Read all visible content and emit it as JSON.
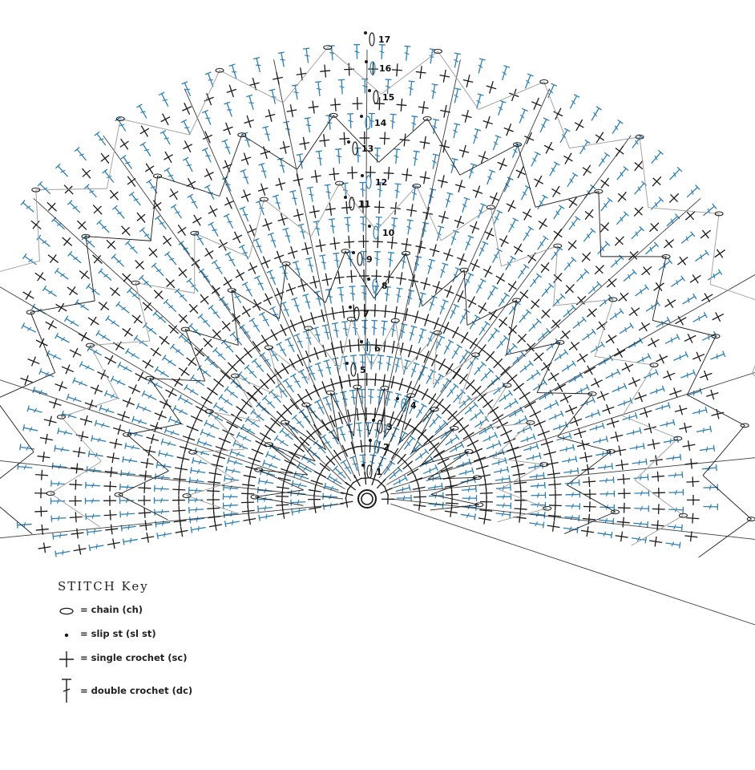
{
  "diagram": {
    "colors": {
      "ink": "#1a1a1a",
      "blue": "#2b7fb5",
      "grey": "#9a9a9a"
    },
    "round_labels": [
      "1",
      "2",
      "3",
      "4",
      "5",
      "6",
      "7",
      "8",
      "9",
      "10",
      "11",
      "12",
      "13",
      "14",
      "15",
      "16",
      "17"
    ]
  },
  "stitch_key": {
    "title": "STITCH Key",
    "items": [
      {
        "icon": "chain-oval-icon",
        "label": "= chain (ch)"
      },
      {
        "icon": "slip-dot-icon",
        "label": "= slip st (sl st)"
      },
      {
        "icon": "single-crochet-cross-icon",
        "label": "= single crochet (sc)"
      },
      {
        "icon": "double-crochet-icon",
        "label": "= double crochet (dc)"
      }
    ]
  }
}
